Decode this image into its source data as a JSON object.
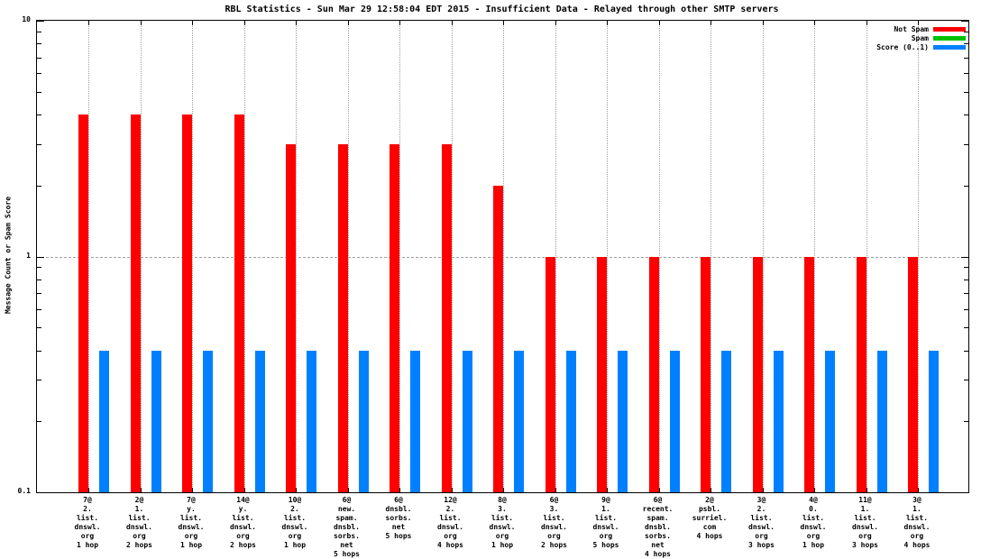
{
  "chart_data": {
    "type": "bar",
    "yscale": "log",
    "ylim": [
      0.1,
      10
    ],
    "yticks": [
      10,
      1,
      0.1
    ],
    "grid": true,
    "legend_position": "top-right-inside",
    "title": "RBL Statistics - Sun Mar 29 12:58:04 EDT 2015 - Insufficient Data - Relayed through other SMTP servers",
    "ylabel": "Message Count or Spam Score",
    "categories": [
      "7@\n2.\nlist.\ndnswl.\norg\n1 hop",
      "2@\n1.\nlist.\ndnswl.\norg\n2 hops",
      "7@\ny.\nlist.\ndnswl.\norg\n1 hop",
      "14@\ny.\nlist.\ndnswl.\norg\n2 hops",
      "10@\n2.\nlist.\ndnswl.\norg\n1 hop",
      "6@\nnew.\nspam.\ndnsbl.\nsorbs.\nnet\n5 hops",
      "6@\ndnsbl.\nsorbs.\nnet\n5 hops",
      "12@\n2.\nlist.\ndnswl.\norg\n4 hops",
      "8@\n3.\nlist.\ndnswl.\norg\n1 hop",
      "6@\n3.\nlist.\ndnswl.\norg\n2 hops",
      "9@\n1.\nlist.\ndnswl.\norg\n5 hops",
      "6@\nrecent.\nspam.\ndnsbl.\nsorbs.\nnet\n4 hops",
      "2@\npsbl.\nsurriel.\ncom\n4 hops",
      "3@\n2.\nlist.\ndnswl.\norg\n3 hops",
      "4@\n0.\nlist.\ndnswl.\norg\n1 hop",
      "11@\n1.\nlist.\ndnswl.\norg\n3 hops",
      "3@\n1.\nlist.\ndnswl.\norg\n4 hops"
    ],
    "series": [
      {
        "name": "Not Spam",
        "color": "#ff0000",
        "values": [
          4,
          4,
          4,
          4,
          3,
          3,
          3,
          3,
          2,
          1,
          1,
          1,
          1,
          1,
          1,
          1,
          1
        ]
      },
      {
        "name": "Spam",
        "color": "#00c000",
        "values": [
          0,
          0,
          0,
          0,
          0,
          0,
          0,
          0,
          0,
          0,
          0,
          0,
          0,
          0,
          0,
          0,
          0
        ]
      },
      {
        "name": "Score (0..1)",
        "color": "#0080ff",
        "values": [
          0.4,
          0.4,
          0.4,
          0.4,
          0.4,
          0.4,
          0.4,
          0.4,
          0.4,
          0.4,
          0.4,
          0.4,
          0.4,
          0.4,
          0.4,
          0.4,
          0.4
        ]
      }
    ],
    "grid_color": "#9e9e9e",
    "axis_color": "#000000"
  }
}
